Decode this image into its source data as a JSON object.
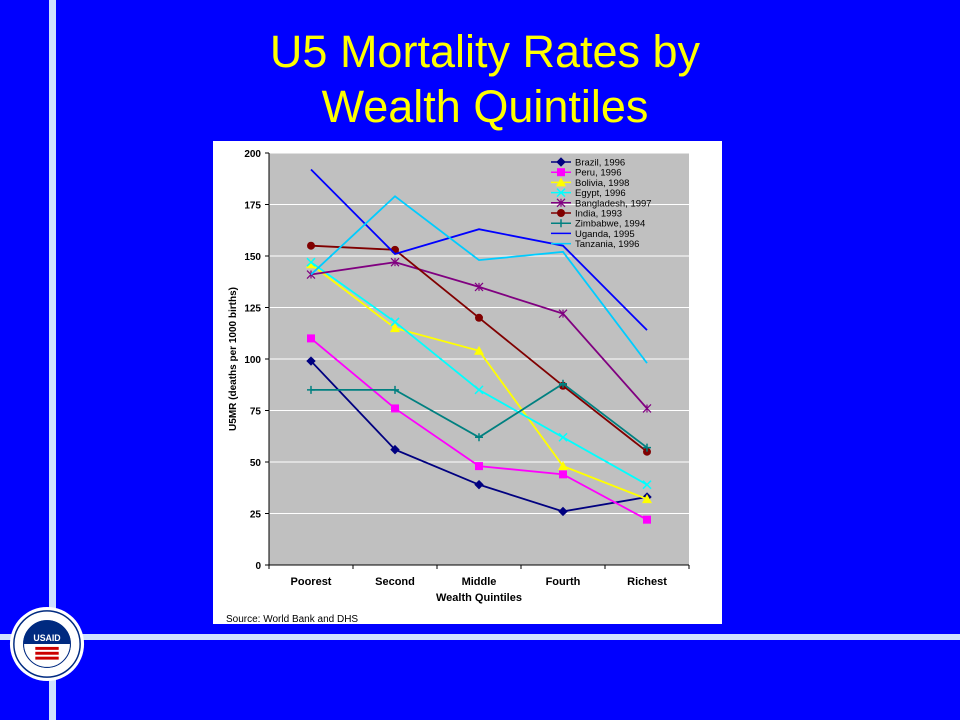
{
  "slide": {
    "title_line1": "U5 Mortality Rates by",
    "title_line2": "Wealth Quintiles",
    "source": "Source: World Bank and DHS",
    "logo_text": "USAID",
    "colors": {
      "background": "#0000ff",
      "title": "#ffff00",
      "accent_bar": "#cfe0ff",
      "plot_bg": "#c0c0c0"
    }
  },
  "chart_data": {
    "type": "line",
    "title": "",
    "xlabel": "Wealth Quintiles",
    "ylabel": "U5MR (deaths per 1000 births)",
    "categories": [
      "Poorest",
      "Second",
      "Middle",
      "Fourth",
      "Richest"
    ],
    "ylim": [
      0,
      200
    ],
    "yticks": [
      0,
      25,
      50,
      75,
      100,
      125,
      150,
      175,
      200
    ],
    "grid": true,
    "legend_position": "top-right",
    "series": [
      {
        "name": "Brazil, 1996",
        "color": "#000080",
        "marker": "diamond",
        "values": [
          99,
          56,
          39,
          26,
          33
        ]
      },
      {
        "name": "Peru, 1996",
        "color": "#ff00ff",
        "marker": "square",
        "values": [
          110,
          76,
          48,
          44,
          22
        ]
      },
      {
        "name": "Bolivia, 1998",
        "color": "#ffff00",
        "marker": "triangle",
        "values": [
          146,
          115,
          104,
          48,
          32
        ]
      },
      {
        "name": "Egypt, 1996",
        "color": "#00ffff",
        "marker": "x",
        "values": [
          147,
          118,
          85,
          62,
          39
        ]
      },
      {
        "name": "Bangladesh, 1997",
        "color": "#800080",
        "marker": "star",
        "values": [
          141,
          147,
          135,
          122,
          76
        ]
      },
      {
        "name": "India, 1993",
        "color": "#800000",
        "marker": "circle",
        "values": [
          155,
          153,
          120,
          87,
          55
        ]
      },
      {
        "name": "Zimbabwe, 1994",
        "color": "#008080",
        "marker": "plus",
        "values": [
          85,
          85,
          62,
          88,
          57
        ]
      },
      {
        "name": "Uganda, 1995",
        "color": "#0000ff",
        "marker": "none",
        "values": [
          192,
          151,
          163,
          155,
          114
        ]
      },
      {
        "name": "Tanzania, 1996",
        "color": "#00ccff",
        "marker": "none",
        "values": [
          141,
          179,
          148,
          152,
          98
        ]
      }
    ]
  }
}
